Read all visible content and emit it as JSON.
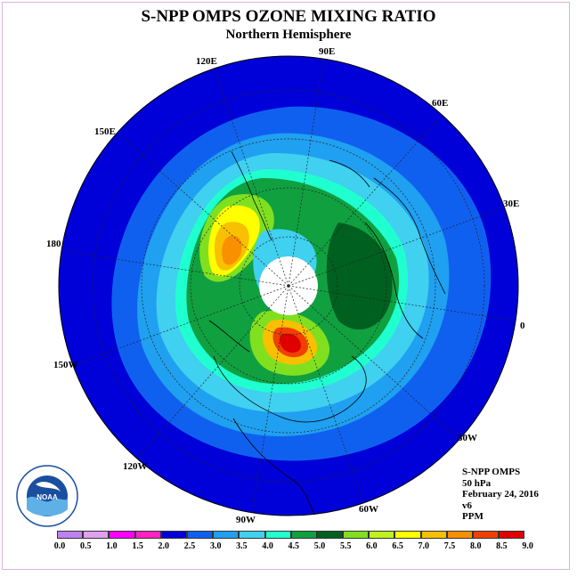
{
  "title": "S-NPP OMPS OZONE MIXING RATIO",
  "subtitle": "Northern Hemisphere",
  "longitude_labels": [
    "90E",
    "60E",
    "30E",
    "0",
    "30W",
    "60W",
    "90W",
    "120W",
    "150W",
    "180",
    "150E",
    "120E"
  ],
  "info": {
    "instrument": "S-NPP OMPS",
    "level": "50 hPa",
    "date": "February 24, 2016",
    "version": "v6",
    "units": "PPM"
  },
  "colorbar": {
    "ticks": [
      "0.0",
      "0.5",
      "1.0",
      "1.5",
      "2.0",
      "2.5",
      "3.0",
      "3.5",
      "4.0",
      "4.5",
      "5.0",
      "5.5",
      "6.0",
      "6.5",
      "7.0",
      "7.5",
      "8.0",
      "8.5",
      "9.0"
    ],
    "colors": [
      "#c080f0",
      "#e0a0f0",
      "#ff00ff",
      "#ff20c0",
      "#0000d8",
      "#1060f0",
      "#20a0f0",
      "#40d0f0",
      "#20ffd0",
      "#10a040",
      "#006020",
      "#80e020",
      "#c0f020",
      "#ffff00",
      "#f8c000",
      "#f89000",
      "#f04000",
      "#e00000",
      "#7a4a30"
    ]
  },
  "logo": {
    "text": "NOAA",
    "ring_text": "NATIONAL OCEANIC AND ATMOSPHERIC ADMINISTRATION · U.S. DEPARTMENT OF COMMERCE"
  }
}
